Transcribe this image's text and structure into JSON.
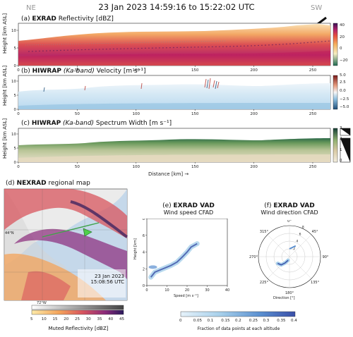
{
  "header": {
    "title": "23 Jan 2023 14:59:16 to 15:22:02 UTC",
    "left_corner": "NE",
    "right_corner": "SW"
  },
  "panels": {
    "a": {
      "letter": "(a)",
      "instrument": "EXRAD",
      "rest": " Reflectivity [dBZ]",
      "ylabel": "Height [km ASL]",
      "cb_ticks": [
        "40",
        "20",
        "0",
        "−20"
      ]
    },
    "b": {
      "letter": "(b)",
      "instrument": "HIWRAP",
      "band": "(Ka-band)",
      "rest": " Velocity [m s⁻¹]",
      "ylabel": "Height [km ASL]",
      "cb_ticks": [
        "5.0",
        "2.5",
        "0.0",
        "−2.5",
        "−5.0"
      ]
    },
    "c": {
      "letter": "(c)",
      "instrument": "HIWRAP",
      "band": "(Ka-band)",
      "rest": " Spectrum Width [m s⁻¹]",
      "ylabel": "Height [km ASL]",
      "cb_ticks": [
        "3",
        "2",
        "1",
        "0"
      ]
    },
    "x_ticks": [
      "0",
      "50",
      "100",
      "150",
      "200",
      "250"
    ],
    "y_ticks": [
      "0",
      "5",
      "10"
    ],
    "xlabel": "Distance [km] →",
    "d": {
      "letter": "(d)",
      "instrument": "NEXRAD",
      "rest": " regional map",
      "stamp_date": "23 Jan 2023",
      "stamp_time": "15:08:56 UTC",
      "lat_label": "44°N",
      "lon_label": "72°W",
      "cb_label": "Muted Reflectivity [dBZ]",
      "cb_ticks": [
        "5",
        "10",
        "15",
        "20",
        "25",
        "30",
        "35",
        "40",
        "45"
      ]
    },
    "e": {
      "letter": "(e)",
      "instrument": "EXRAD VAD",
      "subtitle": "Wind speed CFAD",
      "xlabel": "Speed [m s⁻¹]",
      "ylabel": "Height [km]",
      "x_ticks": [
        "0",
        "10",
        "20",
        "30",
        "40"
      ],
      "y_ticks": [
        "0",
        "2",
        "4",
        "6",
        "8"
      ]
    },
    "f": {
      "letter": "(f)",
      "instrument": "EXRAD VAD",
      "subtitle": "Wind direction CFAD",
      "xlabel": "Direction [°]",
      "angle_labels": [
        "0°",
        "45°",
        "90°",
        "135°",
        "180°",
        "225°",
        "270°",
        "315°"
      ],
      "r_ticks": [
        "2",
        "4",
        "6",
        "8"
      ]
    },
    "cfad_cb": {
      "label": "Fraction of data points at each altitude",
      "ticks": [
        "0",
        "0.05",
        "0.1",
        "0.15",
        "0.2",
        "0.25",
        "0.3",
        "0.35",
        "0.4"
      ]
    }
  },
  "colors": {
    "reflectivity": [
      "#1f6b52",
      "#f6eec2",
      "#f6b15f",
      "#e8503f",
      "#b0206a",
      "#3b1257"
    ],
    "velocity_neg": "#3a7fc0",
    "velocity_pos": "#b9362f",
    "spectrum": [
      "#e4d9bf",
      "#8fb070",
      "#1d6b4a"
    ],
    "muted_map": [
      "#fdeaa8",
      "#f4a35a",
      "#d8555e",
      "#8a2a7a",
      "#2b1a5c"
    ],
    "cfad": [
      "#e6f2fa",
      "#a6cfea",
      "#5a8fd0",
      "#3a4fa8"
    ]
  },
  "chart_data": [
    {
      "type": "heatmap",
      "title": "(a) EXRAD Reflectivity [dBZ]",
      "xlabel": "Distance [km]",
      "ylabel": "Height [km ASL]",
      "xlim": [
        0,
        265
      ],
      "ylim": [
        0,
        12
      ],
      "colorbar_range": [
        -20,
        45
      ],
      "echo_top_km": [
        [
          0,
          7.5
        ],
        [
          50,
          9
        ],
        [
          100,
          9
        ],
        [
          150,
          9.5
        ],
        [
          200,
          9.5
        ],
        [
          250,
          10.5
        ],
        [
          265,
          10.5
        ]
      ]
    },
    {
      "type": "heatmap",
      "title": "(b) HIWRAP (Ka-band) Velocity [m s⁻¹]",
      "ylabel": "Height [km ASL]",
      "xlim": [
        0,
        265
      ],
      "ylim": [
        0,
        12
      ],
      "colorbar_range": [
        -5.0,
        5.0
      ]
    },
    {
      "type": "heatmap",
      "title": "(c) HIWRAP (Ka-band) Spectrum Width [m s⁻¹]",
      "xlabel": "Distance [km] →",
      "ylabel": "Height [km ASL]",
      "xlim": [
        0,
        265
      ],
      "ylim": [
        0,
        12
      ],
      "colorbar_range": [
        0,
        3
      ]
    },
    {
      "type": "heatmap",
      "title": "(e) EXRAD VAD Wind speed CFAD",
      "xlabel": "Speed [m s⁻¹]",
      "ylabel": "Height [km]",
      "xlim": [
        0,
        40
      ],
      "ylim": [
        0,
        8
      ],
      "ridge": [
        [
          2,
          1.0
        ],
        [
          4,
          1.6
        ],
        [
          8,
          2.0
        ],
        [
          12,
          2.4
        ],
        [
          15,
          2.8
        ],
        [
          18,
          3.5
        ],
        [
          20,
          4.0
        ],
        [
          22,
          4.6
        ],
        [
          25,
          5.0
        ]
      ]
    },
    {
      "type": "heatmap",
      "title": "(f) EXRAD VAD Wind direction CFAD",
      "xlabel": "Direction [°]",
      "rlim": [
        0,
        8
      ],
      "ridge": [
        [
          200,
          1.0
        ],
        [
          215,
          2.0
        ],
        [
          225,
          3.0
        ],
        [
          240,
          3.5
        ],
        [
          0,
          2.0
        ],
        [
          30,
          3.2
        ]
      ]
    }
  ]
}
